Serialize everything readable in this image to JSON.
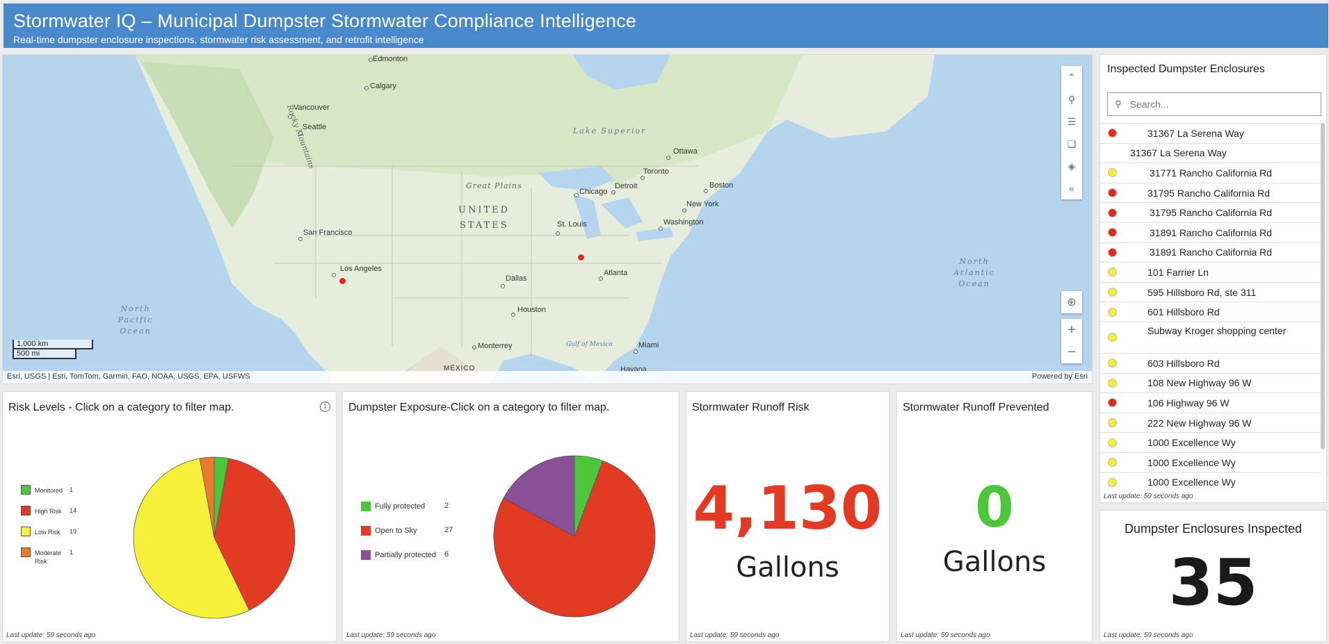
{
  "header": {
    "title": "Stormwater IQ – Municipal Dumpster Stormwater Compliance Intelligence",
    "subtitle": "Real-time dumpster enclosure inspections, stormwater risk assessment, and retrofit intelligence"
  },
  "map": {
    "attribution": "Esri, USGS | Esri, TomTom, Garmin, FAO, NOAA, USGS, EPA, USFWS",
    "powered_by": "Powered by Esri",
    "scale_km": "1,000 km",
    "scale_mi": "500 mi",
    "country_label_1": "UNITED",
    "country_label_2": "STATES",
    "mexico_label": "MÉXICO",
    "great_plains": "Great Plains",
    "rocky_mountains": "Rocky Mountains",
    "lake_superior": "Lake Superior",
    "north_pacific": "North Pacific Ocean",
    "north_atlantic": "North Atlantic Ocean",
    "gulf": "Gulf of Mexico",
    "cities": {
      "calgary": "Calgary",
      "vancouver": "Vancouver",
      "seattle": "Seattle",
      "san_francisco": "San Francisco",
      "los_angeles": "Los Angeles",
      "dallas": "Dallas",
      "houston": "Houston",
      "monterrey": "Monterrey",
      "st_louis": "St. Louis",
      "chicago": "Chicago",
      "detroit": "Detroit",
      "toronto": "Toronto",
      "ottawa": "Ottawa",
      "boston": "Boston",
      "new_york": "New York",
      "washington": "Washington",
      "atlanta": "Atlanta",
      "miami": "Miami",
      "havana": "Havana",
      "edmonton": "Edmonton"
    }
  },
  "list_panel": {
    "title": "Inspected Dumpster Enclosures",
    "search_placeholder": "Search...",
    "last_update": "Last update: 59 seconds ago",
    "items": [
      {
        "label": "31367 La Serena Way",
        "color": "#e22a1b"
      },
      {
        "label": "31367 La Serena Way",
        "color": ""
      },
      {
        "label": "31771 Rancho California Rd",
        "color": "#f2ec3a"
      },
      {
        "label": "31795 Rancho California Rd",
        "color": "#e22a1b"
      },
      {
        "label": "31795 Rancho California Rd",
        "color": "#e22a1b"
      },
      {
        "label": "31891 Rancho California Rd",
        "color": "#e22a1b"
      },
      {
        "label": "31891 Rancho California Rd",
        "color": "#e22a1b"
      },
      {
        "label": "101 Farrier Ln",
        "color": "#f2ec3a"
      },
      {
        "label": "595 Hillsboro Rd, ste 311",
        "color": "#f2ec3a"
      },
      {
        "label": "601 Hillsboro Rd",
        "color": "#f2ec3a"
      },
      {
        "label": "Subway Kroger shopping center",
        "color": "#f2ec3a"
      },
      {
        "label": "603 Hillsboro Rd",
        "color": "#f2ec3a"
      },
      {
        "label": "108 New Highway 96 W",
        "color": "#f2ec3a"
      },
      {
        "label": "106 Highway 96 W",
        "color": "#e22a1b"
      },
      {
        "label": "222 New Highway 96 W",
        "color": "#f2ec3a"
      },
      {
        "label": "1000 Excellence Wy",
        "color": "#f2ec3a"
      },
      {
        "label": "1000 Excellence Wy",
        "color": "#f2ec3a"
      },
      {
        "label": "1000 Excellence Wy",
        "color": "#f2ec3a"
      }
    ]
  },
  "risk_panel": {
    "title": "Risk Levels - Click on a category to filter map.",
    "last_update": "Last update: 59 seconds ago"
  },
  "exposure_panel": {
    "title": "Dumpster Exposure-Click on a category to filter map.",
    "last_update": "Last update: 59 seconds ago"
  },
  "runoff_panel": {
    "title": "Stormwater Runoff Risk",
    "value": "4,130",
    "unit": "Gallons",
    "color": "#e33a24",
    "last_update": "Last update: 59 seconds ago"
  },
  "prevent_panel": {
    "title": "Stormwater Runoff Prevented",
    "value": "0",
    "unit": "Gallons",
    "color": "#4cc63a",
    "last_update": "Last update: 59 seconds ago"
  },
  "inspected_panel": {
    "title": "Dumpster Enclosures Inspected",
    "value": "35",
    "last_update": "Last update: 59 seconds ago"
  },
  "chart_data": [
    {
      "type": "pie",
      "categories": [
        "Monitored",
        "High Risk",
        "Low Risk",
        "Moderate Risk"
      ],
      "values": [
        1,
        14,
        19,
        1
      ],
      "colors": [
        "#4cc63a",
        "#e33a24",
        "#f7f03a",
        "#ec7a2c"
      ]
    },
    {
      "type": "pie",
      "categories": [
        "Fully protected",
        "Open to Sky",
        "Partially protected"
      ],
      "values": [
        2,
        27,
        6
      ],
      "colors": [
        "#4cc63a",
        "#e33a24",
        "#8a4f96"
      ]
    }
  ]
}
